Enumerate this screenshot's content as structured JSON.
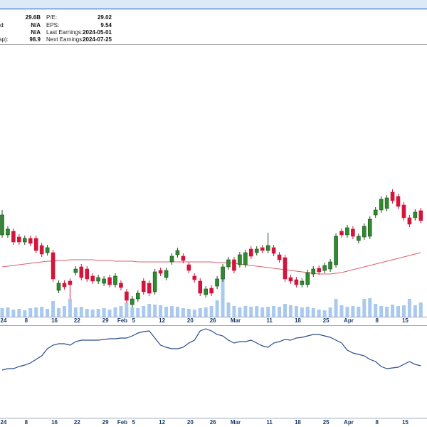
{
  "header": {
    "left": [
      {
        "value": "29.6B"
      },
      {
        "label": "d:",
        "value": "N/A"
      },
      {
        "value": "N/A"
      },
      {
        "label": "ap):",
        "value": "98.9"
      }
    ],
    "right": [
      {
        "label": "P/E:",
        "value": "29.02"
      },
      {
        "label": "EPS:",
        "value": "9.54"
      },
      {
        "label": "Last Earnings:",
        "value": "2024-05-01"
      },
      {
        "label": "Next Earnings:",
        "value": "2024-07-25"
      }
    ]
  },
  "chart_data": {
    "type": "candlestick",
    "categories": [
      "24",
      null,
      null,
      null,
      "8",
      null,
      null,
      null,
      null,
      "16",
      null,
      null,
      null,
      "22",
      null,
      null,
      null,
      null,
      "29",
      null,
      null,
      "Feb",
      null,
      "5",
      null,
      null,
      null,
      null,
      "12",
      null,
      null,
      null,
      null,
      "20",
      null,
      null,
      null,
      "26",
      null,
      null,
      null,
      "Mar",
      null,
      null,
      null,
      null,
      null,
      "11",
      null,
      null,
      null,
      null,
      "18",
      null,
      null,
      null,
      null,
      "25",
      null,
      null,
      null,
      "Apr",
      null,
      null,
      null,
      null,
      "8",
      null,
      null,
      null,
      null,
      "15",
      null,
      null,
      null
    ],
    "open": [
      115,
      115,
      120,
      112,
      105,
      110,
      110,
      100,
      90,
      90,
      37,
      47,
      50,
      62,
      70,
      67,
      57,
      50,
      47,
      55,
      45,
      47,
      35,
      17,
      25,
      50,
      47,
      35,
      65,
      55,
      77,
      87,
      85,
      73,
      57,
      50,
      31,
      40,
      43,
      53,
      70,
      80,
      73,
      73,
      95,
      90,
      97,
      93,
      97,
      87,
      83,
      55,
      52,
      45,
      45,
      60,
      68,
      65,
      67,
      73,
      120,
      115,
      123,
      107,
      112,
      113,
      143,
      150,
      152,
      175,
      169,
      157,
      139,
      139,
      149
    ],
    "high": [
      150,
      127,
      124,
      116,
      114,
      114,
      114,
      104,
      101,
      94,
      51,
      51,
      54,
      71,
      74,
      71,
      61,
      59,
      57,
      59,
      61,
      51,
      39,
      29,
      37,
      54,
      51,
      67,
      69,
      69,
      89,
      97,
      89,
      77,
      61,
      54,
      43,
      44,
      57,
      74,
      84,
      84,
      91,
      94,
      99,
      99,
      101,
      118,
      101,
      91,
      87,
      59,
      56,
      54,
      66,
      71,
      72,
      76,
      81,
      117,
      124,
      129,
      127,
      117,
      131,
      141,
      154,
      169,
      171,
      179,
      173,
      161,
      143,
      151,
      153
    ],
    "low": [
      111,
      111,
      101,
      101,
      101,
      99,
      89,
      84,
      86,
      49,
      33,
      38,
      25,
      58,
      51,
      49,
      46,
      46,
      43,
      41,
      41,
      37,
      19,
      13,
      21,
      31,
      29,
      31,
      57,
      51,
      73,
      83,
      75,
      61,
      48,
      29,
      27,
      29,
      39,
      49,
      66,
      61,
      69,
      69,
      81,
      86,
      89,
      89,
      85,
      76,
      49,
      46,
      41,
      41,
      41,
      56,
      59,
      61,
      63,
      69,
      111,
      111,
      109,
      103,
      108,
      109,
      139,
      146,
      148,
      159,
      151,
      135,
      126,
      135,
      131
    ],
    "close": [
      143,
      123,
      105,
      105,
      110,
      103,
      93,
      88,
      97,
      53,
      47,
      42,
      45,
      67,
      55,
      53,
      50,
      55,
      53,
      45,
      57,
      41,
      23,
      25,
      33,
      35,
      33,
      63,
      61,
      65,
      85,
      93,
      79,
      65,
      52,
      33,
      39,
      33,
      53,
      70,
      80,
      65,
      87,
      90,
      85,
      95,
      93,
      100,
      89,
      80,
      53,
      50,
      45,
      50,
      62,
      67,
      63,
      72,
      77,
      113,
      115,
      125,
      113,
      113,
      127,
      137,
      150,
      165,
      167,
      163,
      155,
      139,
      130,
      147,
      135
    ],
    "up_color": "#2e8b2e",
    "down_color": "#d3143c",
    "ylim": [
      0,
      380
    ],
    "volume": {
      "color": "#a9c9ee",
      "ylim": [
        0,
        110
      ],
      "values": [
        24,
        26,
        20,
        22,
        18,
        24,
        26,
        28,
        22,
        44,
        24,
        30,
        50,
        26,
        28,
        22,
        20,
        22,
        24,
        20,
        26,
        30,
        40,
        26,
        24,
        30,
        36,
        34,
        32,
        28,
        30,
        28,
        24,
        22,
        20,
        24,
        26,
        30,
        46,
        110,
        40,
        30,
        26,
        30,
        28,
        30,
        26,
        28,
        30,
        28,
        36,
        32,
        30,
        26,
        28,
        24,
        20,
        18,
        26,
        50,
        32,
        28,
        30,
        28,
        50,
        52,
        36,
        30,
        28,
        34,
        30,
        32,
        50,
        32,
        40
      ]
    },
    "ma": {
      "color": "#d9606c",
      "values": [
        70,
        71,
        72,
        73,
        74,
        75,
        76,
        77,
        78,
        78,
        79,
        79,
        80,
        80,
        80,
        80,
        80,
        79,
        79,
        79,
        78,
        78,
        78,
        78,
        77,
        77,
        77,
        77,
        77,
        77,
        77,
        77,
        77,
        77,
        77,
        77,
        77,
        77,
        76,
        76,
        76,
        75,
        74,
        73,
        72,
        71,
        70,
        69,
        68,
        67,
        66,
        65,
        64,
        63,
        62,
        61,
        60,
        60,
        60,
        61,
        62,
        64,
        66,
        68,
        70,
        72,
        74,
        76,
        78,
        80,
        82,
        84,
        86,
        88,
        90
      ]
    },
    "indicator": {
      "color": "#2b4c8c",
      "ylim": [
        0,
        135
      ],
      "values": [
        70,
        72,
        72,
        75,
        77,
        80,
        85,
        90,
        100,
        105,
        107,
        107,
        105,
        110,
        112,
        112,
        112,
        112,
        113,
        114,
        114,
        115,
        115,
        118,
        122,
        124,
        125,
        115,
        105,
        102,
        100,
        100,
        102,
        108,
        112,
        125,
        128,
        125,
        120,
        118,
        112,
        108,
        110,
        110,
        112,
        108,
        104,
        102,
        108,
        110,
        113,
        112,
        115,
        116,
        118,
        120,
        120,
        118,
        116,
        112,
        108,
        98,
        94,
        92,
        90,
        85,
        82,
        75,
        72,
        73,
        74,
        78,
        82,
        78,
        76
      ]
    }
  }
}
